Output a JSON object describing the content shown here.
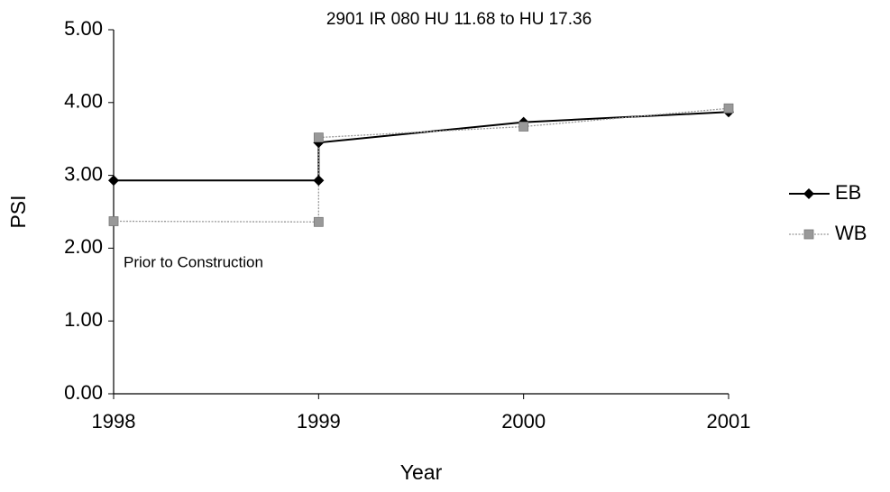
{
  "chart_data": {
    "type": "line",
    "title": "2901 IR 080 HU 11.68 to HU 17.36",
    "x_label": "Year",
    "y_label": "PSI",
    "annotation": "Prior to Construction",
    "x": [
      1998,
      1999,
      1999,
      2000,
      2001
    ],
    "series": [
      {
        "name": "EB",
        "color": "#000000",
        "marker": "diamond",
        "dashed": false,
        "values": [
          2.93,
          2.93,
          3.45,
          3.73,
          3.87
        ]
      },
      {
        "name": "WB",
        "color": "#999999",
        "marker": "square",
        "dashed": true,
        "values": [
          2.37,
          2.36,
          3.52,
          3.67,
          3.92
        ]
      }
    ],
    "xlim": [
      1998,
      2001
    ],
    "xticks": [
      1998,
      1999,
      2000,
      2001
    ],
    "ylim": [
      0,
      5
    ],
    "yticks": [
      {
        "value": 0,
        "label": "0.00"
      },
      {
        "value": 1,
        "label": "1.00"
      },
      {
        "value": 2,
        "label": "2.00"
      },
      {
        "value": 3,
        "label": "3.00"
      },
      {
        "value": 4,
        "label": "4.00"
      },
      {
        "value": 5,
        "label": "5.00"
      }
    ],
    "grid": false,
    "legend": "right"
  }
}
